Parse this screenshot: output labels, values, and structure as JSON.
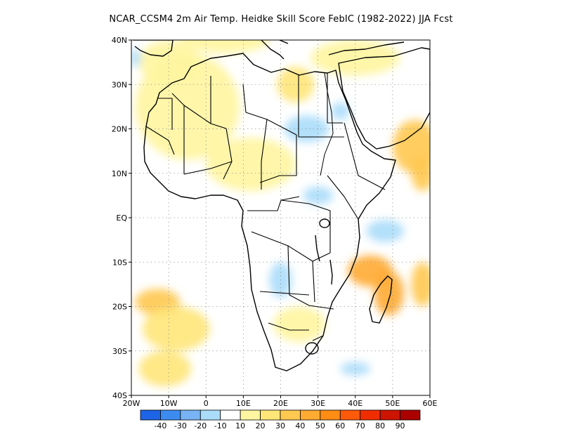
{
  "title": "NCAR_CCSM4  2m Air Temp. Heidke Skill Score FebIC (1982-2022) JJA Fcst",
  "map": {
    "lon_range": [
      -20,
      60
    ],
    "lat_range": [
      -40,
      40
    ],
    "lon_ticks": [
      {
        "value": -20,
        "label": "20W"
      },
      {
        "value": -10,
        "label": "10W"
      },
      {
        "value": 0,
        "label": "0"
      },
      {
        "value": 10,
        "label": "10E"
      },
      {
        "value": 20,
        "label": "20E"
      },
      {
        "value": 30,
        "label": "30E"
      },
      {
        "value": 40,
        "label": "40E"
      },
      {
        "value": 50,
        "label": "50E"
      },
      {
        "value": 60,
        "label": "60E"
      }
    ],
    "lat_ticks": [
      {
        "value": 40,
        "label": "40N"
      },
      {
        "value": 30,
        "label": "30N"
      },
      {
        "value": 20,
        "label": "20N"
      },
      {
        "value": 10,
        "label": "10N"
      },
      {
        "value": 0,
        "label": "EQ"
      },
      {
        "value": -10,
        "label": "10S"
      },
      {
        "value": -20,
        "label": "20S"
      },
      {
        "value": -30,
        "label": "30S"
      },
      {
        "value": -40,
        "label": "40S"
      }
    ],
    "gridlines": "dotted"
  },
  "colorbar": {
    "colors": [
      "#1e64e6",
      "#3c8cf0",
      "#78b4f5",
      "#aadcfa",
      "#ffffff",
      "#fff5a0",
      "#ffe678",
      "#ffc850",
      "#ffaa32",
      "#ff8c14",
      "#ff5a0a",
      "#f02d00",
      "#cd1400",
      "#aa0000"
    ],
    "labels": [
      "-40",
      "-30",
      "-20",
      "-10",
      "10",
      "20",
      "30",
      "40",
      "50",
      "60",
      "70",
      "80",
      "90"
    ]
  },
  "regions": [
    {
      "value": 15,
      "lon": -5,
      "lat": 25,
      "rx": 14,
      "ry": 12
    },
    {
      "value": 12,
      "lon": 12,
      "lat": 12,
      "rx": 12,
      "ry": 6
    },
    {
      "value": 15,
      "lon": -10,
      "lat": 35,
      "rx": 8,
      "ry": 5
    },
    {
      "value": 20,
      "lon": 24,
      "lat": 30,
      "rx": 5,
      "ry": 4
    },
    {
      "value": 35,
      "lon": 56,
      "lat": 16,
      "rx": 6,
      "ry": 6
    },
    {
      "value": 30,
      "lon": 58,
      "lat": 10,
      "rx": 3,
      "ry": 4
    },
    {
      "value": 45,
      "lon": 44,
      "lat": -12,
      "rx": 6,
      "ry": 3.5
    },
    {
      "value": 40,
      "lon": 49,
      "lat": -17,
      "rx": 4,
      "ry": 5
    },
    {
      "value": 35,
      "lon": 58,
      "lat": -15,
      "rx": 3,
      "ry": 5
    },
    {
      "value": 30,
      "lon": -13,
      "lat": -19,
      "rx": 6,
      "ry": 3
    },
    {
      "value": 25,
      "lon": -11,
      "lat": -34,
      "rx": 7,
      "ry": 4
    },
    {
      "value": 20,
      "lon": -8,
      "lat": -25,
      "rx": 9,
      "ry": 5
    },
    {
      "value": 15,
      "lon": 25,
      "lat": -24,
      "rx": 7,
      "ry": 4
    },
    {
      "value": 15,
      "lon": 5,
      "lat": 40,
      "rx": 12,
      "ry": 3
    },
    {
      "value": 12,
      "lon": 40,
      "lat": 36,
      "rx": 12,
      "ry": 4
    },
    {
      "value": -15,
      "lon": 27,
      "lat": 20,
      "rx": 6,
      "ry": 3
    },
    {
      "value": -15,
      "lon": 48,
      "lat": -3,
      "rx": 5,
      "ry": 2.5
    },
    {
      "value": -12,
      "lon": 36,
      "lat": 24,
      "rx": 2.5,
      "ry": 2
    },
    {
      "value": -15,
      "lon": 20,
      "lat": -14,
      "rx": 3,
      "ry": 4
    },
    {
      "value": -12,
      "lon": 40,
      "lat": -34,
      "rx": 4,
      "ry": 1.5
    },
    {
      "value": -12,
      "lon": 30,
      "lat": 5,
      "rx": 4,
      "ry": 2
    },
    {
      "value": -12,
      "lon": -19,
      "lat": 36,
      "rx": 1.5,
      "ry": 2
    }
  ]
}
